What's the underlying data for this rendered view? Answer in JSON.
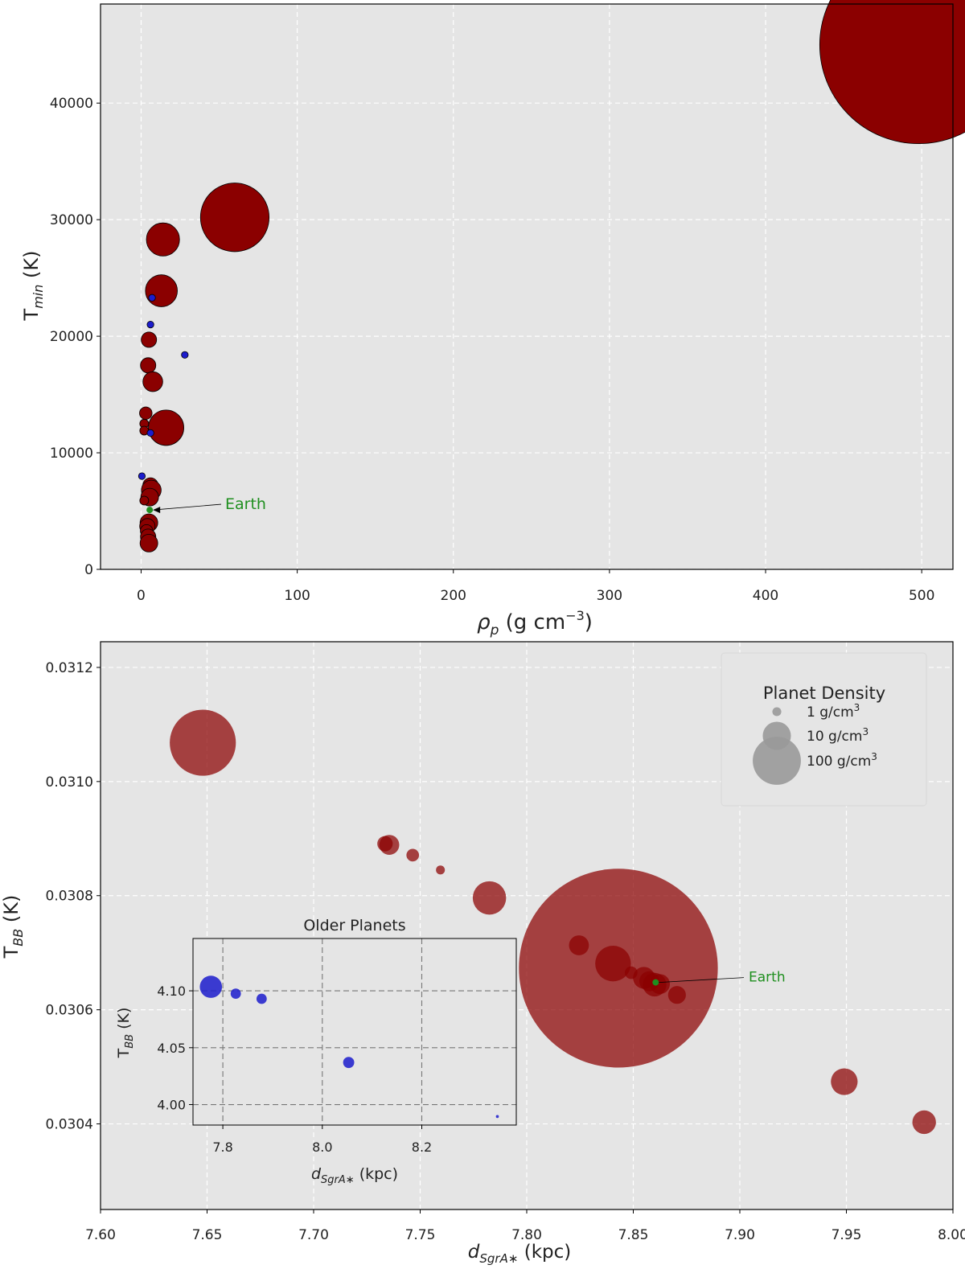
{
  "colors": {
    "background": "#e5e5e5",
    "grid": "#ffffff",
    "young_planet": "#8b0000",
    "older_planet": "#1c1ccc",
    "earth": "#1f8f1f",
    "legend_marker": "#999999"
  },
  "chart_data": [
    {
      "type": "scatter",
      "id": "top",
      "xlabel": "ρ_p (g cm^-3)",
      "xlabel_main": "ρ",
      "xlabel_sub": "p",
      "xlabel_unit": " (g cm",
      "xlabel_sup": "−3",
      "xlabel_close": ")",
      "ylabel": "T_min (K)",
      "ylabel_main": "T",
      "ylabel_sub": "min",
      "ylabel_unit": " (K)",
      "xlim": [
        -26,
        520
      ],
      "ylim": [
        0,
        48500
      ],
      "xticks": [
        0,
        100,
        200,
        300,
        400,
        500
      ],
      "xtick_labels": [
        "0",
        "100",
        "200",
        "300",
        "400",
        "500"
      ],
      "yticks": [
        0,
        10000,
        20000,
        30000,
        40000
      ],
      "ytick_labels": [
        "0",
        "10000",
        "20000",
        "30000",
        "40000"
      ],
      "grid": true,
      "points_red": [
        {
          "x": 498,
          "y": 45000,
          "density": 498
        },
        {
          "x": 60,
          "y": 30200,
          "density": 60
        },
        {
          "x": 14,
          "y": 28300,
          "density": 14
        },
        {
          "x": 13,
          "y": 23900,
          "density": 13
        },
        {
          "x": 5,
          "y": 19700,
          "density": 3
        },
        {
          "x": 4.5,
          "y": 17500,
          "density": 3
        },
        {
          "x": 7.5,
          "y": 16100,
          "density": 5
        },
        {
          "x": 3,
          "y": 13400,
          "density": 2
        },
        {
          "x": 2,
          "y": 12500,
          "density": 1
        },
        {
          "x": 2,
          "y": 11900,
          "density": 1
        },
        {
          "x": 16,
          "y": 12150,
          "density": 16
        },
        {
          "x": 6,
          "y": 7200,
          "density": 3
        },
        {
          "x": 6.5,
          "y": 6800,
          "density": 5
        },
        {
          "x": 5.5,
          "y": 6200,
          "density": 4
        },
        {
          "x": 2,
          "y": 5900,
          "density": 1
        },
        {
          "x": 5,
          "y": 4000,
          "density": 4
        },
        {
          "x": 4,
          "y": 3700,
          "density": 3
        },
        {
          "x": 3.5,
          "y": 3300,
          "density": 2
        },
        {
          "x": 4.5,
          "y": 2800,
          "density": 3
        },
        {
          "x": 5,
          "y": 2250,
          "density": 4
        }
      ],
      "points_blue": [
        {
          "x": 7,
          "y": 23300,
          "density": 3
        },
        {
          "x": 6,
          "y": 21000,
          "density": 4
        },
        {
          "x": 28,
          "y": 18400,
          "density": 4
        },
        {
          "x": 6,
          "y": 11700,
          "density": 4
        },
        {
          "x": 0.5,
          "y": 8000,
          "density": 4
        }
      ],
      "earth_point": {
        "x": 5.5,
        "y": 5100
      },
      "annotation": "Earth"
    },
    {
      "type": "scatter",
      "id": "bottom",
      "xlabel": "d_SgrA* (kpc)",
      "xlabel_main": "d",
      "xlabel_sub": "SgrA∗",
      "xlabel_unit": " (kpc)",
      "ylabel": "T_BB (K)",
      "ylabel_main": "T",
      "ylabel_sub": "BB",
      "ylabel_unit": " (K)",
      "xlim": [
        7.6,
        8.0
      ],
      "ylim": [
        0.03025,
        0.031245
      ],
      "xticks": [
        7.6,
        7.65,
        7.7,
        7.75,
        7.8,
        7.85,
        7.9,
        7.95,
        8.0
      ],
      "xtick_labels": [
        "7.60",
        "7.65",
        "7.70",
        "7.75",
        "7.80",
        "7.85",
        "7.90",
        "7.95",
        "8.00"
      ],
      "yticks": [
        0.0304,
        0.0306,
        0.0308,
        0.031,
        0.0312
      ],
      "ytick_labels": [
        "0.0304",
        "0.0306",
        "0.0308",
        "0.0310",
        "0.0312"
      ],
      "grid": true,
      "points_red": [
        {
          "x": 7.648,
          "y": 0.031068,
          "density": 55
        },
        {
          "x": 7.843,
          "y": 0.030673,
          "density": 498
        },
        {
          "x": 7.7335,
          "y": 0.030891,
          "density": 3
        },
        {
          "x": 7.7355,
          "y": 0.030889,
          "density": 5
        },
        {
          "x": 7.7465,
          "y": 0.030871,
          "density": 2
        },
        {
          "x": 7.7595,
          "y": 0.030845,
          "density": 1
        },
        {
          "x": 7.7825,
          "y": 0.030796,
          "density": 14
        },
        {
          "x": 7.8245,
          "y": 0.030713,
          "density": 5
        },
        {
          "x": 7.8405,
          "y": 0.030681,
          "density": 16
        },
        {
          "x": 7.849,
          "y": 0.030665,
          "density": 2
        },
        {
          "x": 7.855,
          "y": 0.030656,
          "density": 6
        },
        {
          "x": 7.8575,
          "y": 0.03065,
          "density": 5
        },
        {
          "x": 7.86,
          "y": 0.030644,
          "density": 7
        },
        {
          "x": 7.8625,
          "y": 0.030645,
          "density": 5
        },
        {
          "x": 7.8705,
          "y": 0.030626,
          "density": 4
        },
        {
          "x": 7.949,
          "y": 0.030474,
          "density": 9
        },
        {
          "x": 7.9865,
          "y": 0.030403,
          "density": 7
        }
      ],
      "earth_point": {
        "x": 7.8605,
        "y": 0.030648
      },
      "annotation": "Earth",
      "legend": {
        "title": "Planet Density",
        "placement": "top-right",
        "entries": [
          {
            "label": "1 g/cm",
            "sup": "3",
            "density": 1
          },
          {
            "label": "10 g/cm",
            "sup": "3",
            "density": 10
          },
          {
            "label": "100 g/cm",
            "sup": "3",
            "density": 100
          }
        ]
      }
    },
    {
      "type": "scatter",
      "id": "inset",
      "title": "Older Planets",
      "xlabel": "d_SgrA* (kpc)",
      "xlabel_main": "d",
      "xlabel_sub": "SgrA∗",
      "xlabel_unit": " (kpc)",
      "ylabel": "T_BB (K)",
      "ylabel_main": "T",
      "ylabel_sub": "BB",
      "ylabel_unit": " (K)",
      "xlim": [
        7.74,
        8.39
      ],
      "ylim": [
        3.982,
        4.146
      ],
      "xticks": [
        7.8,
        8.0,
        8.2
      ],
      "xtick_labels": [
        "7.8",
        "8.0",
        "8.2"
      ],
      "yticks": [
        4.0,
        4.05,
        4.1
      ],
      "ytick_labels": [
        "4.00",
        "4.05",
        "4.10"
      ],
      "grid": true,
      "points_blue": [
        {
          "x": 7.776,
          "y": 4.1035,
          "density": 28
        },
        {
          "x": 7.826,
          "y": 4.0975,
          "density": 6
        },
        {
          "x": 7.878,
          "y": 4.093,
          "density": 6
        },
        {
          "x": 8.053,
          "y": 4.037,
          "density": 7
        },
        {
          "x": 8.352,
          "y": 3.9895,
          "density": 0.5
        }
      ]
    }
  ]
}
